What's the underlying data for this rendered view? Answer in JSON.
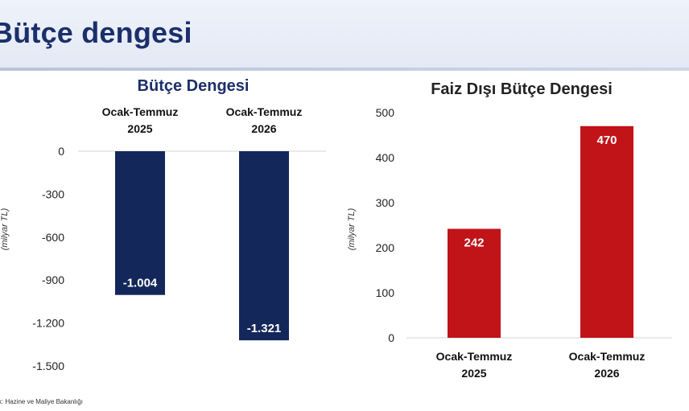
{
  "page": {
    "title": "Bütçe dengesi",
    "source": "k: Hazine ve Maliye Bakanlığı"
  },
  "colors": {
    "navy_bar": "#14275a",
    "red_bar": "#c01418",
    "title_blue": "#1b2f6b"
  },
  "chart_data": [
    {
      "type": "bar",
      "title": "Bütçe Dengesi",
      "ylabel": "(milyar TL)",
      "categories": [
        [
          "Ocak-Temmuz",
          "2025"
        ],
        [
          "Ocak-Temmuz",
          "2026"
        ]
      ],
      "values": [
        -1004,
        -1321
      ],
      "value_labels": [
        "-1.004",
        "-1.321"
      ],
      "ylim": [
        -1500,
        0
      ],
      "yticks": [
        0,
        -300,
        -600,
        -900,
        -1200,
        -1500
      ],
      "ytick_labels": [
        "0",
        "-300",
        "-600",
        "-900",
        "-1.200",
        "-1.500"
      ],
      "category_axis_position": "top",
      "grid": false,
      "color": "#14275a"
    },
    {
      "type": "bar",
      "title": "Faiz Dışı Bütçe Dengesi",
      "ylabel": "(milyar TL)",
      "categories": [
        [
          "Ocak-Temmuz",
          "2025"
        ],
        [
          "Ocak-Temmuz",
          "2026"
        ]
      ],
      "values": [
        242,
        470
      ],
      "value_labels": [
        "242",
        "470"
      ],
      "ylim": [
        0,
        500
      ],
      "yticks": [
        0,
        100,
        200,
        300,
        400,
        500
      ],
      "ytick_labels": [
        "0",
        "100",
        "200",
        "300",
        "400",
        "500"
      ],
      "category_axis_position": "bottom",
      "grid": false,
      "color": "#c01418"
    }
  ]
}
